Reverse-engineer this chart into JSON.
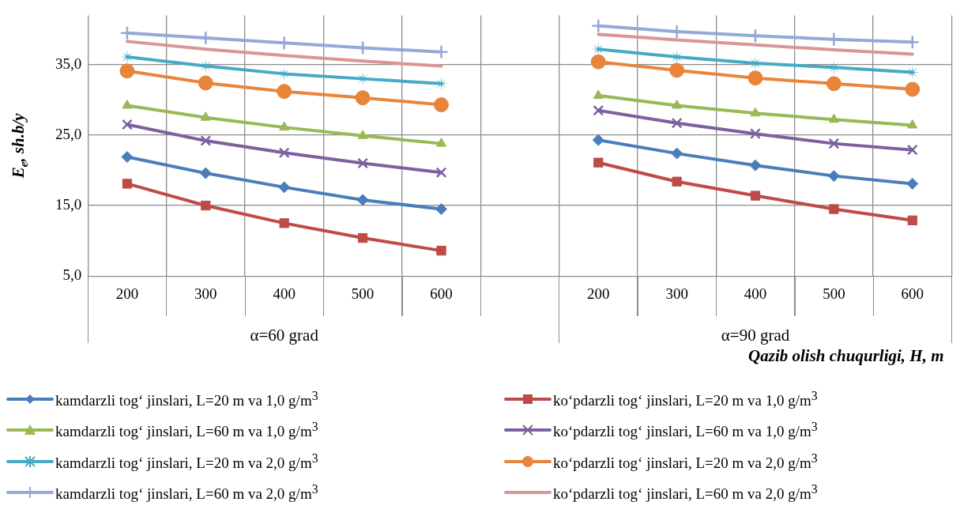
{
  "chart_data": {
    "type": "line",
    "ylabel": "E$_{e}$, sh.b/y",
    "xlabel": "Qazib olish chuqurligi, H, m",
    "categories": [
      "200",
      "300",
      "400",
      "500",
      "600",
      null,
      "200",
      "300",
      "400",
      "500",
      "600"
    ],
    "annotations": [
      "α=60 grad",
      "α=90 grad"
    ],
    "ylim": [
      5,
      42
    ],
    "yticks": [
      {
        "value": 5,
        "label": "5,0"
      },
      {
        "value": 15,
        "label": "15,0"
      },
      {
        "value": 25,
        "label": "25,0"
      },
      {
        "value": 35,
        "label": "35,0"
      }
    ],
    "grid": true,
    "legend": "bottom",
    "series": [
      {
        "name": "kamdarzli tog‘ jinslari, L=20 m va 1,0 g/m$^{3}$",
        "color": "#4a7ebb",
        "marker": "diamond",
        "values": [
          21.9,
          19.6,
          17.6,
          15.8,
          14.5,
          null,
          24.3,
          22.4,
          20.7,
          19.2,
          18.1
        ]
      },
      {
        "name": "ko‘pdarzli tog‘ jinslari, L=20 m va 1,0 g/m$^{3}$",
        "color": "#be4b48",
        "marker": "square",
        "values": [
          18.1,
          15.0,
          12.5,
          10.4,
          8.6,
          null,
          21.1,
          18.4,
          16.4,
          14.5,
          12.9
        ]
      },
      {
        "name": "kamdarzli tog‘ jinslari, L=60 m va 1,0 g/m$^{3}$",
        "color": "#98b954",
        "marker": "triangle",
        "values": [
          29.2,
          27.5,
          26.1,
          24.9,
          23.8,
          null,
          30.6,
          29.2,
          28.1,
          27.2,
          26.4
        ]
      },
      {
        "name": "ko‘pdarzli tog‘ jinslari, L=60 m va 1,0 g/m$^{3}$",
        "color": "#7d60a0",
        "marker": "cross",
        "values": [
          26.5,
          24.2,
          22.5,
          21.0,
          19.7,
          null,
          28.5,
          26.7,
          25.2,
          23.8,
          22.9
        ]
      },
      {
        "name": "kamdarzli tog‘ jinslari, L=20 m va 2,0 g/m$^{3}$",
        "color": "#46aac5",
        "marker": "star",
        "values": [
          36.1,
          34.8,
          33.7,
          33.0,
          32.3,
          null,
          37.2,
          36.1,
          35.2,
          34.6,
          33.9
        ]
      },
      {
        "name": "ko‘pdarzli tog‘ jinslari, L=20 m va 2,0 g/m$^{3}$",
        "color": "#e8853a",
        "marker": "circle",
        "values": [
          34.1,
          32.4,
          31.2,
          30.3,
          29.3,
          null,
          35.4,
          34.2,
          33.1,
          32.3,
          31.5
        ]
      },
      {
        "name": "kamdarzli tog‘ jinslari, L=60 m va 2,0 g/m$^{3}$",
        "color": "#93a9d8",
        "marker": "plus",
        "values": [
          39.5,
          38.8,
          38.1,
          37.4,
          36.8,
          null,
          40.5,
          39.7,
          39.1,
          38.6,
          38.2
        ]
      },
      {
        "name": "ko‘pdarzli tog‘ jinslari, L=60 m va 2,0 g/m$^{3}$",
        "color": "#d99694",
        "marker": "none",
        "values": [
          38.3,
          37.2,
          36.3,
          35.5,
          34.8,
          null,
          39.3,
          38.5,
          37.8,
          37.1,
          36.5
        ]
      }
    ]
  }
}
